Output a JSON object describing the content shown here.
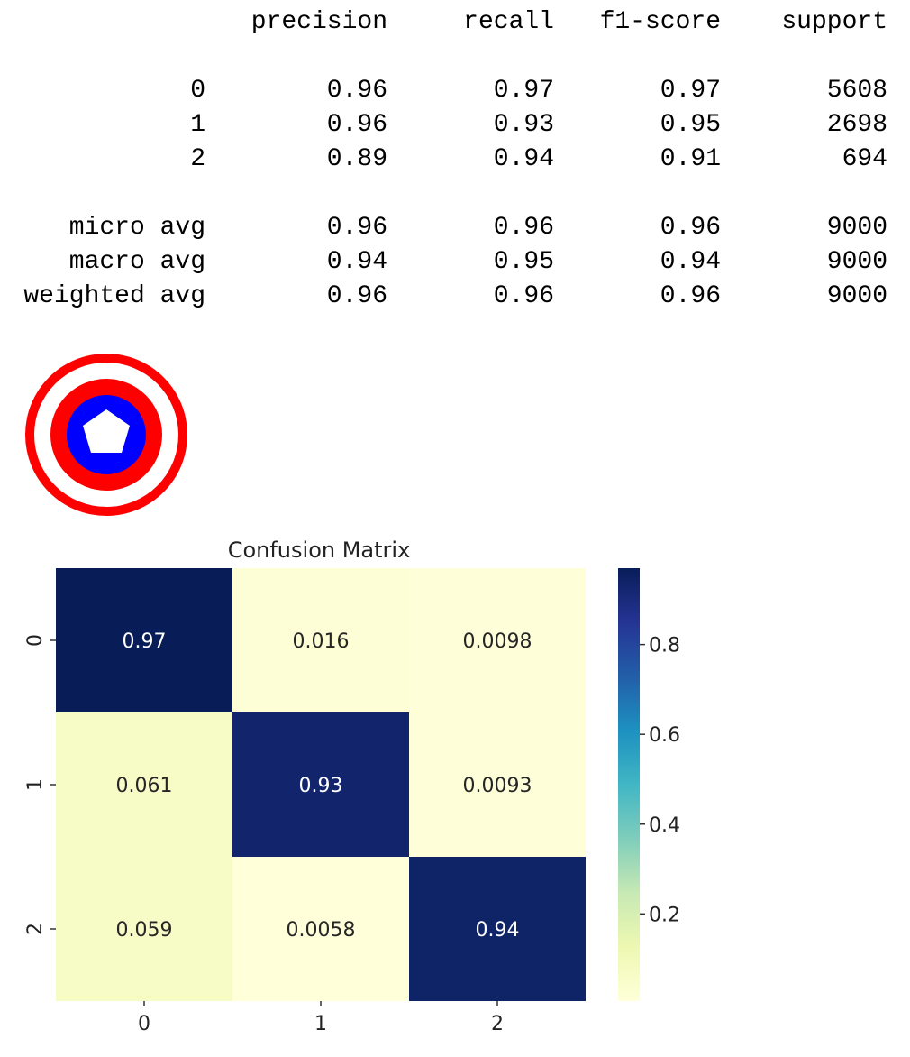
{
  "report": {
    "headers": [
      "precision",
      "recall",
      "f1-score",
      "support"
    ],
    "rows": [
      {
        "label": "0",
        "precision": "0.96",
        "recall": "0.97",
        "f1": "0.97",
        "support": "5608"
      },
      {
        "label": "1",
        "precision": "0.96",
        "recall": "0.93",
        "f1": "0.95",
        "support": "2698"
      },
      {
        "label": "2",
        "precision": "0.89",
        "recall": "0.94",
        "f1": "0.91",
        "support": "694"
      },
      {
        "label": "micro avg",
        "precision": "0.96",
        "recall": "0.96",
        "f1": "0.96",
        "support": "9000"
      },
      {
        "label": "macro avg",
        "precision": "0.94",
        "recall": "0.95",
        "f1": "0.94",
        "support": "9000"
      },
      {
        "label": "weighted avg",
        "precision": "0.96",
        "recall": "0.96",
        "f1": "0.96",
        "support": "9000"
      }
    ]
  },
  "logo": {
    "icon": "captain-america-shield-icon",
    "colors": {
      "ring": "#ff0000",
      "center": "#0000ff",
      "star": "#ffffff"
    }
  },
  "chart_data": {
    "type": "heatmap",
    "title": "Confusion Matrix",
    "x_categories": [
      "0",
      "1",
      "2"
    ],
    "y_categories": [
      "0",
      "1",
      "2"
    ],
    "values": [
      [
        0.97,
        0.016,
        0.0098
      ],
      [
        0.061,
        0.93,
        0.0093
      ],
      [
        0.059,
        0.0058,
        0.94
      ]
    ],
    "annotations": [
      [
        "0.97",
        "0.016",
        "0.0098"
      ],
      [
        "0.061",
        "0.93",
        "0.0093"
      ],
      [
        "0.059",
        "0.0058",
        "0.94"
      ]
    ],
    "colormap": "YlGnBu",
    "colorbar": {
      "range": [
        0.0058,
        0.97
      ],
      "ticks": [
        0.2,
        0.4,
        0.6,
        0.8
      ],
      "tick_labels": [
        "0.2",
        "0.4",
        "0.6",
        "0.8"
      ]
    },
    "xlabel": "",
    "ylabel": ""
  }
}
